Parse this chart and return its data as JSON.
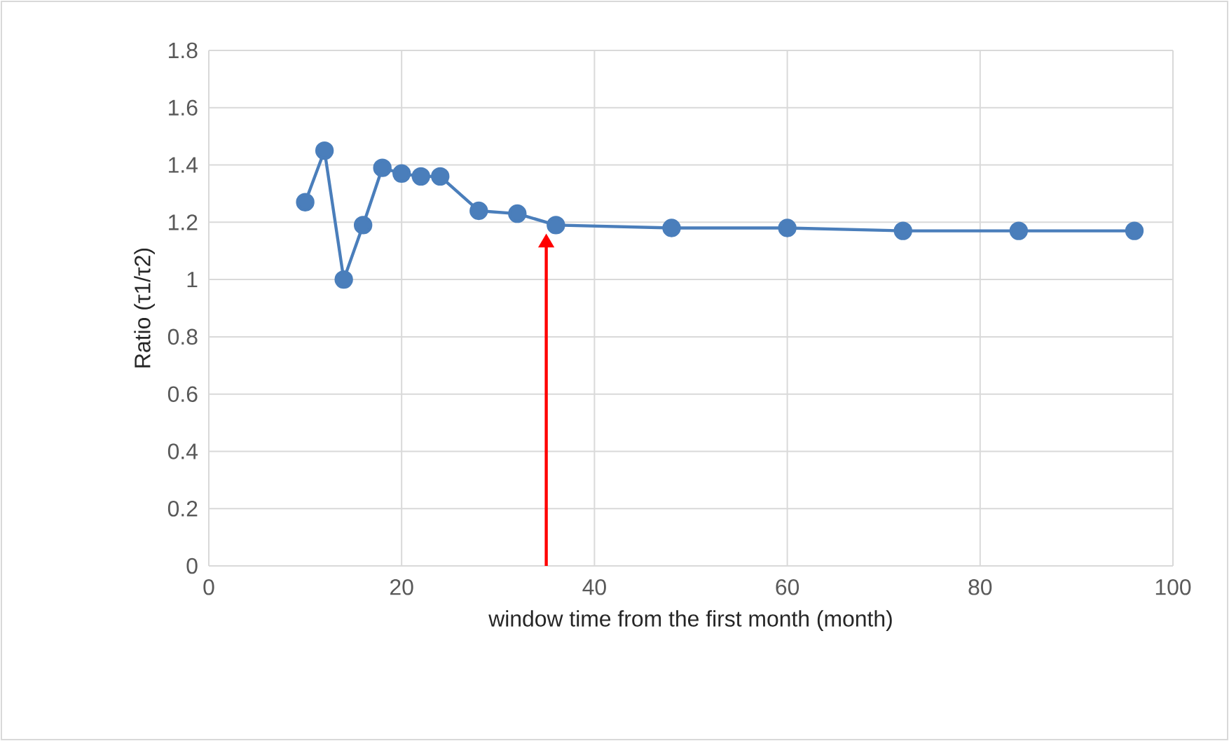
{
  "chart_data": {
    "type": "line",
    "xlabel": "window time from the first month (month)",
    "ylabel": "Ratio (τ1/τ2)",
    "series": [
      {
        "color": "#4a7ebb",
        "x": [
          10,
          12,
          14,
          16,
          18,
          20,
          22,
          24,
          28,
          32,
          36,
          48,
          60,
          72,
          84,
          96
        ],
        "values": [
          1.27,
          1.45,
          1.0,
          1.19,
          1.39,
          1.37,
          1.36,
          1.36,
          1.24,
          1.23,
          1.19,
          1.18,
          1.18,
          1.17,
          1.17,
          1.17
        ]
      }
    ],
    "xlim": [
      0,
      100
    ],
    "xticks": [
      0,
      20,
      40,
      60,
      80,
      100
    ],
    "ylim": [
      0,
      1.8
    ],
    "yticks": [
      0,
      {
        "value": 0.2,
        "label": "0.2"
      },
      {
        "value": 0.4,
        "label": "0.4"
      },
      {
        "value": 0.6,
        "label": "0.6"
      },
      {
        "value": 0.8,
        "label": "0.8"
      },
      1,
      {
        "value": 1.2,
        "label": "1.2"
      },
      {
        "value": 1.4,
        "label": "1.4"
      },
      {
        "value": 1.6,
        "label": "1.6"
      },
      {
        "value": 1.8,
        "label": "1.8"
      }
    ],
    "ref_lines": [
      {
        "axis": "x",
        "value": 35,
        "color": "#ff0000"
      }
    ],
    "grid": true,
    "marker": "circle",
    "line_style": "solid"
  }
}
